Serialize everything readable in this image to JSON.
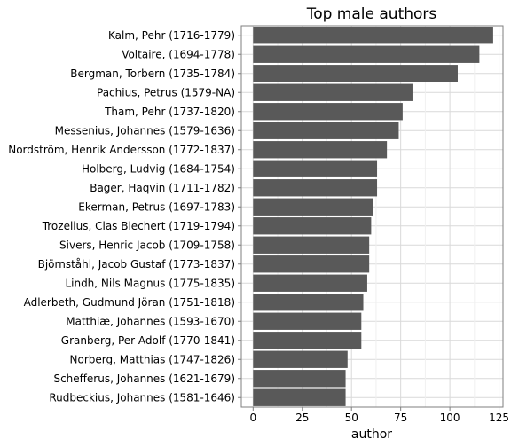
{
  "chart_data": {
    "type": "bar",
    "orientation": "horizontal",
    "title": "Top male authors",
    "xlabel": "author",
    "ylabel": "",
    "xlim": [
      -6,
      127
    ],
    "xticks": [
      0,
      25,
      50,
      75,
      100,
      125
    ],
    "grid": true,
    "bar_color": "#595959",
    "categories": [
      "Kalm, Pehr (1716-1779)",
      "Voltaire,  (1694-1778)",
      "Bergman, Torbern (1735-1784)",
      "Pachius, Petrus (1579-NA)",
      "Tham, Pehr (1737-1820)",
      "Messenius, Johannes (1579-1636)",
      "Nordström, Henrik Andersson (1772-1837)",
      "Holberg, Ludvig (1684-1754)",
      "Bager, Haqvin (1711-1782)",
      "Ekerman, Petrus (1697-1783)",
      "Trozelius, Clas Blechert (1719-1794)",
      "Sivers, Henric Jacob (1709-1758)",
      "Björnståhl, Jacob Gustaf (1773-1837)",
      "Lindh, Nils Magnus (1775-1835)",
      "Adlerbeth, Gudmund Jöran (1751-1818)",
      "Matthiæ, Johannes (1593-1670)",
      "Granberg, Per Adolf (1770-1841)",
      "Norberg, Matthias (1747-1826)",
      "Schefferus, Johannes (1621-1679)",
      "Rudbeckius, Johannes (1581-1646)"
    ],
    "values": [
      122,
      115,
      104,
      81,
      76,
      74,
      68,
      63,
      63,
      61,
      60,
      59,
      59,
      58,
      56,
      55,
      55,
      48,
      47,
      47
    ]
  }
}
